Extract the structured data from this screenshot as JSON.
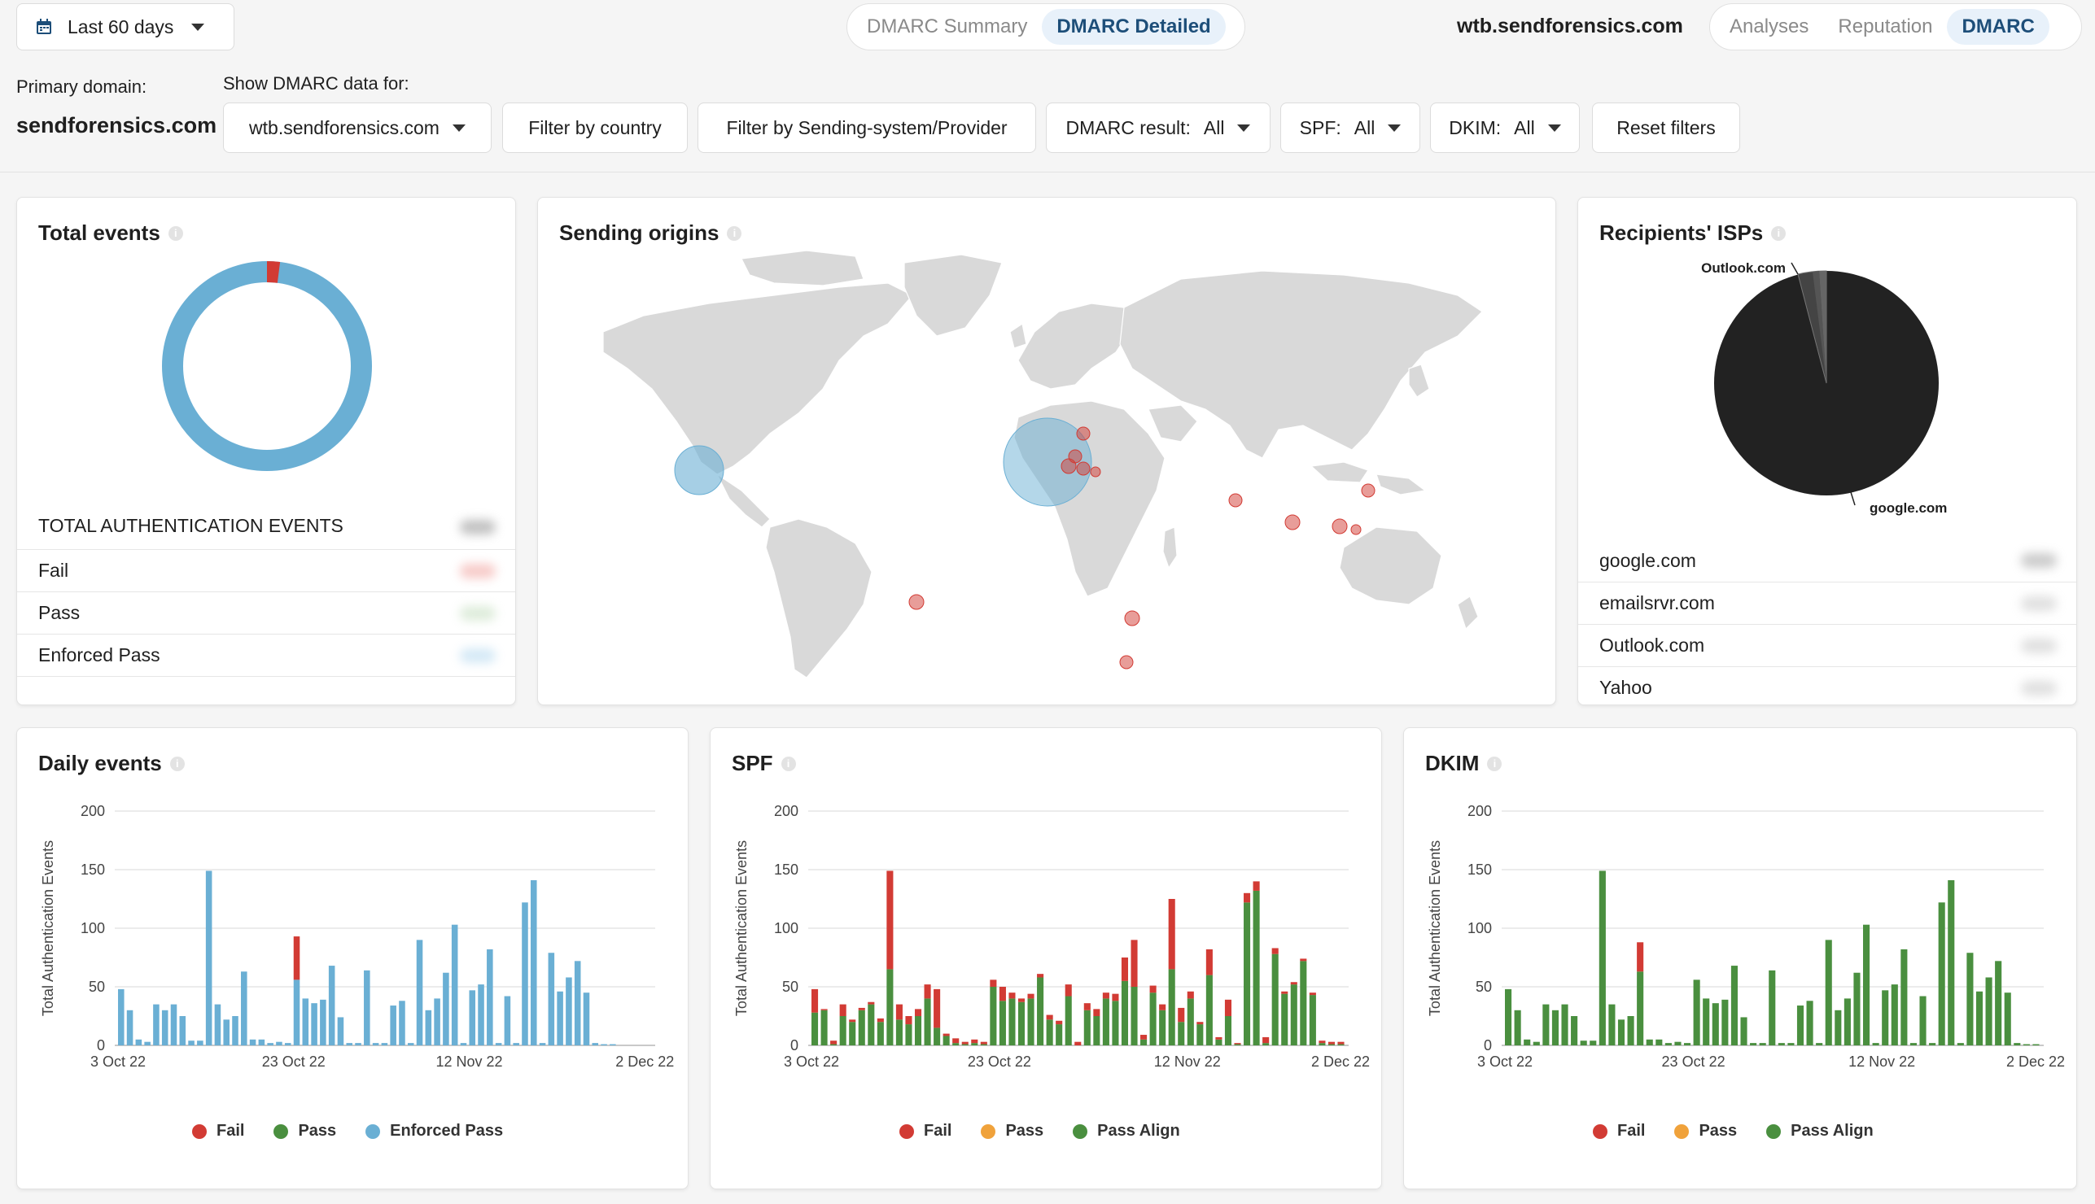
{
  "topbar": {
    "date_range": "Last 60 days",
    "tabs_left": [
      "DMARC Summary",
      "DMARC Detailed"
    ],
    "active_left": "DMARC Detailed",
    "domain_title": "wtb.sendforensics.com",
    "tabs_right": [
      "Analyses",
      "Reputation",
      "DMARC"
    ],
    "active_right": "DMARC"
  },
  "filters": {
    "primary_label": "Primary domain:",
    "primary_value": "sendforensics.com",
    "show_label": "Show DMARC data for:",
    "domain_select": "wtb.sendforensics.com",
    "country_btn": "Filter by country",
    "provider_btn": "Filter by Sending-system/Provider",
    "dmarc_label": "DMARC result:",
    "dmarc_value": "All",
    "spf_label": "SPF:",
    "spf_value": "All",
    "dkim_label": "DKIM:",
    "dkim_value": "All",
    "reset_btn": "Reset filters"
  },
  "total_events": {
    "title": "Total events",
    "header": "TOTAL AUTHENTICATION EVENTS",
    "rows": [
      "Fail",
      "Pass",
      "Enforced Pass"
    ],
    "colors": {
      "fail": "#d23b34",
      "pass": "#4a8f3f",
      "enforced": "#6aafd4"
    },
    "donut_fail_fraction": 0.02
  },
  "origins": {
    "title": "Sending origins"
  },
  "isps": {
    "title": "Recipients' ISPs",
    "pie_labels": [
      "Outlook.com",
      "google.com"
    ],
    "rows": [
      "google.com",
      "emailsrvr.com",
      "Outlook.com",
      "Yahoo"
    ]
  },
  "daily": {
    "title": "Daily events",
    "legend": [
      "Fail",
      "Pass",
      "Enforced Pass"
    ]
  },
  "spf": {
    "title": "SPF",
    "legend": [
      "Fail",
      "Pass",
      "Pass Align"
    ]
  },
  "dkim": {
    "title": "DKIM",
    "legend": [
      "Fail",
      "Pass",
      "Pass Align"
    ]
  },
  "chart_data": [
    {
      "type": "bar",
      "title": "Daily events",
      "ylabel": "Total Authentication Events",
      "ylim": [
        0,
        200
      ],
      "yticks": [
        0,
        50,
        100,
        150,
        200
      ],
      "xticks": [
        "3 Oct 22",
        "23 Oct 22",
        "12 Nov 22",
        "2 Dec 22"
      ],
      "series": [
        {
          "name": "Fail",
          "color": "#d23b34",
          "values": [
            0,
            0,
            0,
            0,
            0,
            0,
            0,
            0,
            0,
            0,
            0,
            0,
            0,
            0,
            0,
            0,
            0,
            0,
            0,
            0,
            37,
            0,
            0,
            0,
            0,
            0,
            0,
            0,
            0,
            0,
            0,
            0,
            0,
            0,
            0,
            0,
            0,
            0,
            0,
            0,
            0,
            0,
            0,
            0,
            0,
            0,
            0,
            0,
            0,
            0,
            0,
            0,
            0,
            0,
            0,
            0,
            0,
            0,
            0,
            0,
            0
          ]
        },
        {
          "name": "Enforced Pass",
          "color": "#6aafd4",
          "values": [
            48,
            30,
            5,
            3,
            35,
            30,
            35,
            25,
            4,
            4,
            149,
            35,
            22,
            25,
            63,
            5,
            5,
            2,
            3,
            2,
            56,
            40,
            36,
            39,
            68,
            24,
            2,
            2,
            64,
            2,
            2,
            34,
            38,
            2,
            90,
            30,
            40,
            62,
            103,
            2,
            47,
            52,
            82,
            2,
            42,
            2,
            122,
            141,
            2,
            79,
            46,
            58,
            72,
            45,
            2,
            1,
            1,
            0,
            0,
            0,
            0
          ]
        }
      ]
    },
    {
      "type": "bar",
      "title": "SPF",
      "ylabel": "Total Authentication Events",
      "ylim": [
        0,
        200
      ],
      "yticks": [
        0,
        50,
        100,
        150,
        200
      ],
      "xticks": [
        "3 Oct 22",
        "23 Oct 22",
        "12 Nov 22",
        "2 Dec 22"
      ],
      "series": [
        {
          "name": "Fail",
          "color": "#d23b34",
          "values": [
            20,
            1,
            3,
            10,
            2,
            2,
            2,
            3,
            84,
            13,
            7,
            6,
            12,
            33,
            2,
            4,
            2,
            3,
            2,
            6,
            12,
            5,
            3,
            4,
            3,
            4,
            3,
            10,
            3,
            6,
            6,
            5,
            6,
            20,
            40,
            4,
            6,
            5,
            60,
            12,
            6,
            2,
            22,
            2,
            14,
            1,
            8,
            8,
            5,
            5,
            2,
            2,
            2,
            2,
            2,
            2,
            2
          ]
        },
        {
          "name": "Pass Align",
          "color": "#4a8f3f",
          "values": [
            28,
            30,
            1,
            25,
            20,
            30,
            35,
            20,
            65,
            22,
            18,
            25,
            40,
            15,
            8,
            2,
            1,
            2,
            1,
            50,
            38,
            40,
            37,
            40,
            58,
            22,
            18,
            42,
            0,
            30,
            25,
            40,
            38,
            55,
            50,
            5,
            45,
            30,
            65,
            20,
            40,
            18,
            60,
            5,
            25,
            1,
            122,
            132,
            2,
            78,
            44,
            52,
            72,
            43,
            2,
            1,
            1
          ]
        }
      ]
    },
    {
      "type": "bar",
      "title": "DKIM",
      "ylabel": "Total Authentication Events",
      "ylim": [
        0,
        200
      ],
      "yticks": [
        0,
        50,
        100,
        150,
        200
      ],
      "xticks": [
        "3 Oct 22",
        "23 Oct 22",
        "12 Nov 22",
        "2 Dec 22"
      ],
      "series": [
        {
          "name": "Fail",
          "color": "#d23b34",
          "values": [
            0,
            0,
            0,
            0,
            0,
            0,
            0,
            0,
            0,
            0,
            0,
            0,
            0,
            0,
            25,
            0,
            0,
            0,
            0,
            0,
            0,
            0,
            0,
            0,
            0,
            0,
            0,
            0,
            0,
            0,
            0,
            0,
            0,
            0,
            0,
            0,
            0,
            0,
            0,
            0,
            0,
            0,
            0,
            0,
            0,
            0,
            0,
            0,
            0,
            0,
            0,
            0,
            0,
            0,
            0,
            0,
            0
          ]
        },
        {
          "name": "Pass Align",
          "color": "#4a8f3f",
          "values": [
            48,
            30,
            5,
            3,
            35,
            30,
            35,
            25,
            4,
            4,
            149,
            35,
            22,
            25,
            63,
            5,
            5,
            2,
            3,
            2,
            56,
            40,
            36,
            39,
            68,
            24,
            2,
            2,
            64,
            2,
            2,
            34,
            38,
            2,
            90,
            30,
            40,
            62,
            103,
            2,
            47,
            52,
            82,
            2,
            42,
            2,
            122,
            141,
            2,
            79,
            46,
            58,
            72,
            45,
            2,
            1,
            1
          ]
        }
      ]
    }
  ]
}
